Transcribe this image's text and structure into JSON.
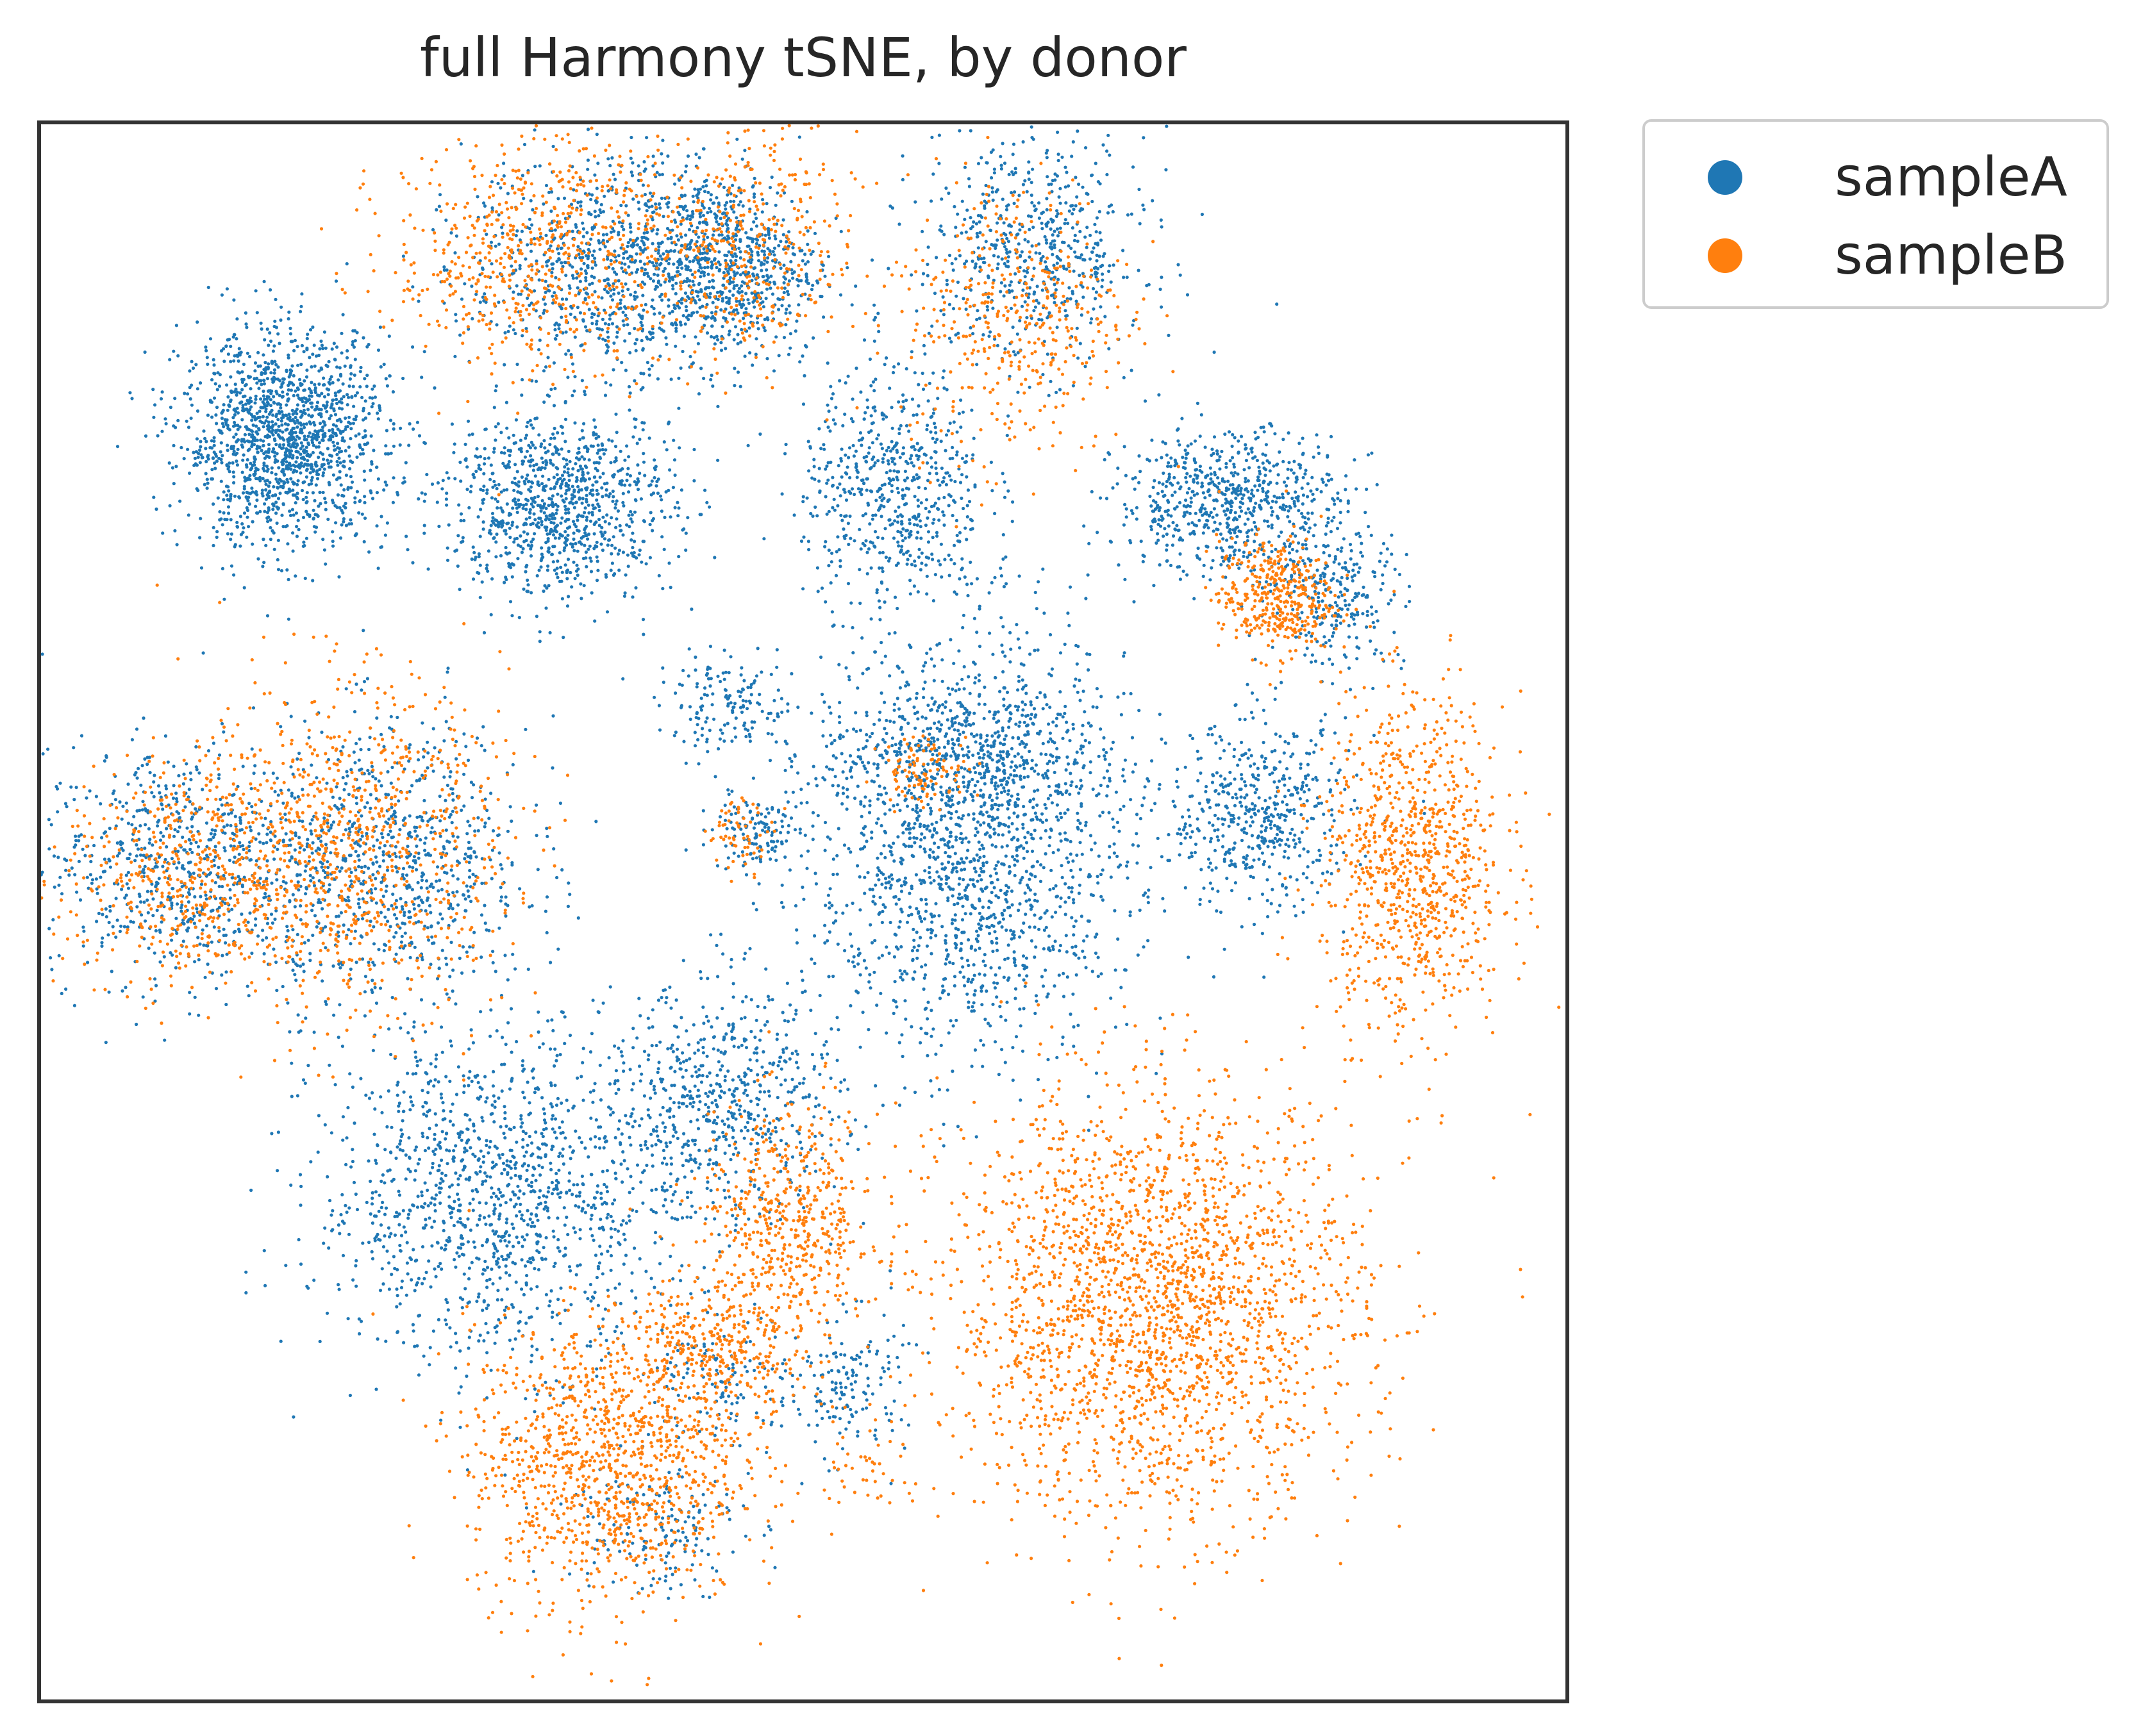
{
  "chart_data": {
    "type": "scatter",
    "title": "full Harmony tSNE, by donor",
    "xlabel": "",
    "ylabel": "",
    "xlim": [
      -50,
      50
    ],
    "ylim": [
      -50,
      50
    ],
    "ticks_visible": false,
    "grid": false,
    "legend_position": "outside-top-right",
    "series": [
      {
        "name": "sampleA",
        "color": "#1f77b4",
        "clusters": [
          {
            "center": [
              -34,
              30
            ],
            "spread": [
              4.5,
              4.5
            ],
            "n": 1500
          },
          {
            "center": [
              -16,
              26
            ],
            "spread": [
              5,
              4
            ],
            "n": 1000
          },
          {
            "center": [
              -13,
              41
            ],
            "spread": [
              6,
              4.5
            ],
            "n": 800
          },
          {
            "center": [
              -5,
              41
            ],
            "spread": [
              4,
              4
            ],
            "n": 700
          },
          {
            "center": [
              6,
              27
            ],
            "spread": [
              4,
              5
            ],
            "n": 600
          },
          {
            "center": [
              15,
              42
            ],
            "spread": [
              5,
              5
            ],
            "n": 600
          },
          {
            "center": [
              28,
              26
            ],
            "spread": [
              5,
              3
            ],
            "n": 700
          },
          {
            "center": [
              35,
              20
            ],
            "spread": [
              3,
              3
            ],
            "n": 250
          },
          {
            "center": [
              30,
              6
            ],
            "spread": [
              4,
              4
            ],
            "n": 500
          },
          {
            "center": [
              11,
              5
            ],
            "spread": [
              7,
              9
            ],
            "n": 1800
          },
          {
            "center": [
              10,
              10
            ],
            "spread": [
              6,
              2
            ],
            "n": 250
          },
          {
            "center": [
              -41,
              3
            ],
            "spread": [
              6,
              5
            ],
            "n": 700
          },
          {
            "center": [
              -27,
              3
            ],
            "spread": [
              6,
              6
            ],
            "n": 800
          },
          {
            "center": [
              -20,
              -18
            ],
            "spread": [
              8,
              7
            ],
            "n": 1300
          },
          {
            "center": [
              -5,
              -12
            ],
            "spread": [
              5,
              5
            ],
            "n": 600
          },
          {
            "center": [
              -5,
              13
            ],
            "spread": [
              3,
              2
            ],
            "n": 150
          },
          {
            "center": [
              -3,
              5
            ],
            "spread": [
              2,
              1.5
            ],
            "n": 120
          },
          {
            "center": [
              -10,
              -39
            ],
            "spread": [
              4,
              3
            ],
            "n": 150
          },
          {
            "center": [
              -5,
              -30
            ],
            "spread": [
              3,
              3
            ],
            "n": 120
          },
          {
            "center": [
              3,
              -30
            ],
            "spread": [
              2.5,
              3
            ],
            "n": 150
          }
        ]
      },
      {
        "name": "sampleB",
        "color": "#ff7f0e",
        "clusters": [
          {
            "center": [
              -18,
              42
            ],
            "spread": [
              6,
              5
            ],
            "n": 600
          },
          {
            "center": [
              -4,
              42
            ],
            "spread": [
              5,
              5
            ],
            "n": 400
          },
          {
            "center": [
              14,
              38
            ],
            "spread": [
              5,
              6
            ],
            "n": 400
          },
          {
            "center": [
              31,
              20
            ],
            "spread": [
              2.5,
              2.5
            ],
            "n": 400
          },
          {
            "center": [
              40,
              3
            ],
            "spread": [
              4,
              7
            ],
            "n": 900
          },
          {
            "center": [
              23,
              -25
            ],
            "spread": [
              9,
              9
            ],
            "n": 2300
          },
          {
            "center": [
              -30,
              4
            ],
            "spread": [
              7,
              7
            ],
            "n": 900
          },
          {
            "center": [
              -41,
              2
            ],
            "spread": [
              5,
              5
            ],
            "n": 400
          },
          {
            "center": [
              -13,
              -35
            ],
            "spread": [
              6,
              6
            ],
            "n": 1100
          },
          {
            "center": [
              -1,
              -20
            ],
            "spread": [
              4,
              5
            ],
            "n": 550
          },
          {
            "center": [
              -6,
              -28
            ],
            "spread": [
              4,
              3
            ],
            "n": 350
          },
          {
            "center": [
              8,
              9
            ],
            "spread": [
              2,
              1.5
            ],
            "n": 100
          },
          {
            "center": [
              -4,
              5
            ],
            "spread": [
              1.5,
              1.5
            ],
            "n": 60
          },
          {
            "center": [
              4,
              -35
            ],
            "spread": [
              2,
              2
            ],
            "n": 40
          }
        ]
      }
    ]
  }
}
